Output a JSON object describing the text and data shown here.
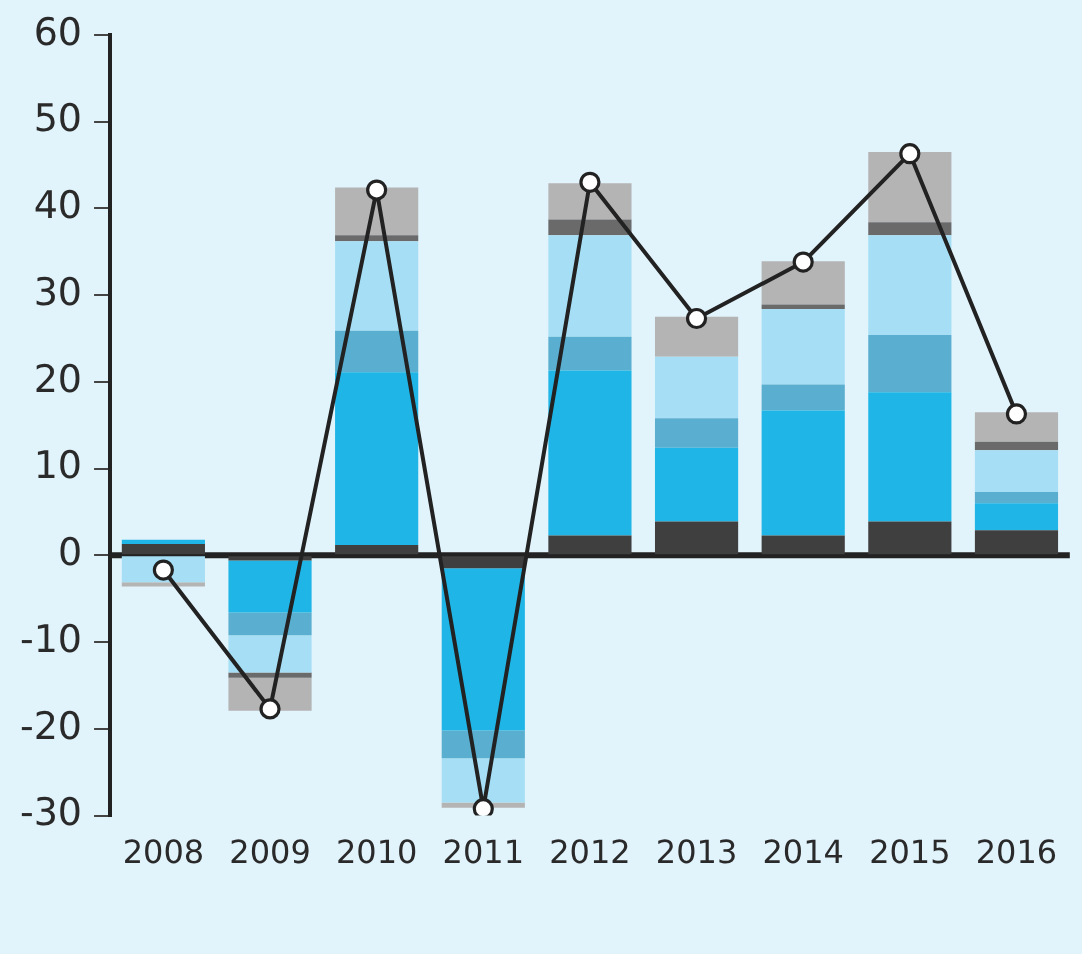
{
  "chart_data": {
    "type": "bar",
    "stacked": true,
    "categories": [
      "2008",
      "2009",
      "2010",
      "2011",
      "2012",
      "2013",
      "2014",
      "2015",
      "2016"
    ],
    "series": [
      {
        "color": "#3f3f3f",
        "values": [
          1.3,
          -0.6,
          1.2,
          -1.5,
          2.3,
          3.9,
          2.3,
          3.9,
          2.9
        ]
      },
      {
        "color": "#1fb5e6",
        "values": [
          0.5,
          -6.0,
          19.9,
          -18.7,
          19.0,
          8.5,
          14.4,
          14.9,
          3.1
        ]
      },
      {
        "color": "#5aaed0",
        "values": [
          null,
          -2.6,
          4.8,
          -3.2,
          3.9,
          3.4,
          3.0,
          6.6,
          1.3
        ]
      },
      {
        "color": "#a6dff5",
        "values": [
          -3.1,
          -4.3,
          10.3,
          -5.1,
          11.7,
          7.1,
          8.7,
          11.5,
          4.8
        ]
      },
      {
        "color": "#6a6a6a",
        "values": [
          null,
          -0.6,
          0.7,
          null,
          1.8,
          null,
          0.5,
          1.5,
          1.0
        ]
      },
      {
        "color": "#b4b4b4",
        "values": [
          -0.5,
          -3.8,
          5.5,
          -0.6,
          4.2,
          4.6,
          5.0,
          8.1,
          3.4
        ]
      },
      {
        "type": "line",
        "color": "#222222",
        "values": [
          -1.7,
          -17.7,
          42.1,
          -29.2,
          43.0,
          27.3,
          33.8,
          46.3,
          16.3
        ]
      }
    ],
    "ylim": [
      -30,
      60
    ],
    "yticks": [
      -30,
      -20,
      -10,
      0,
      10,
      20,
      30,
      40,
      50,
      60
    ],
    "ref_lines": [
      {
        "axis": "y",
        "value": 0,
        "color": "#222222",
        "line_style": "solid"
      }
    ],
    "grid": false,
    "legend": false,
    "marker": "circle",
    "line_style": "solid"
  }
}
